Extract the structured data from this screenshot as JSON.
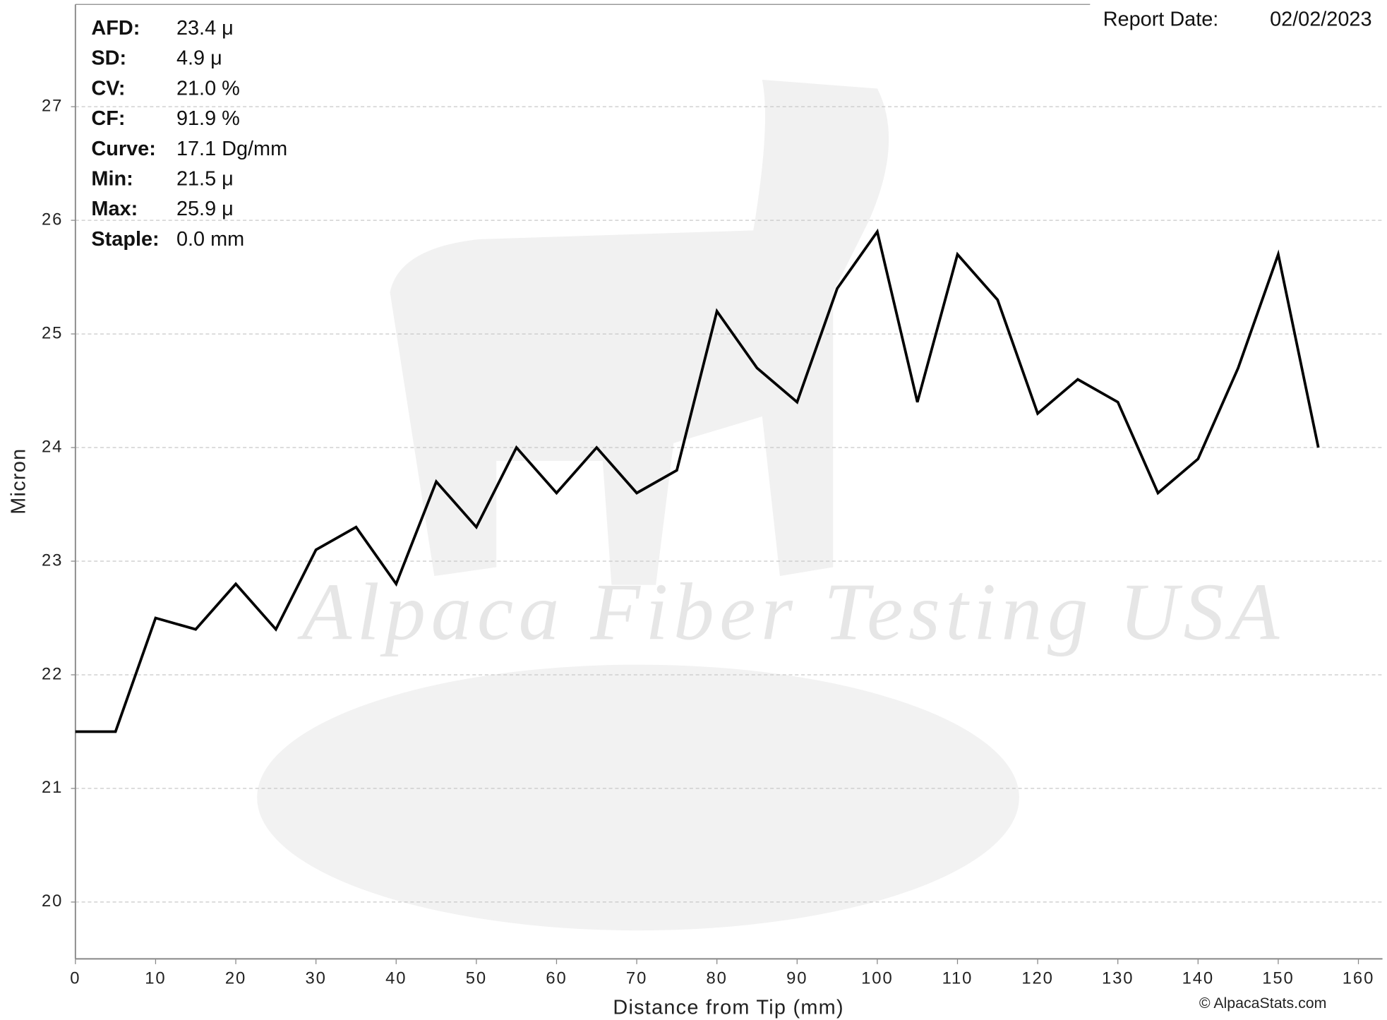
{
  "chart_data": {
    "type": "line",
    "x_label": "Distance from Tip (mm)",
    "y_label": "Micron",
    "report_date_label": "Report Date:",
    "report_date": "02/02/2023",
    "watermark": "Alpaca Fiber Testing USA",
    "credit": "© AlpacaStats.com",
    "stats": [
      {
        "label": "AFD:",
        "value": "23.4 μ"
      },
      {
        "label": "SD:",
        "value": "4.9 μ"
      },
      {
        "label": "CV:",
        "value": "21.0 %"
      },
      {
        "label": "CF:",
        "value": "91.9 %"
      },
      {
        "label": "Curve:",
        "value": "17.1 Dg/mm"
      },
      {
        "label": "Min:",
        "value": "21.5 μ"
      },
      {
        "label": "Max:",
        "value": "25.9 μ"
      },
      {
        "label": "Staple:",
        "value": "0.0 mm"
      }
    ],
    "x": [
      0,
      5,
      10,
      15,
      20,
      25,
      30,
      35,
      40,
      45,
      50,
      55,
      60,
      65,
      70,
      75,
      80,
      85,
      90,
      95,
      100,
      105,
      110,
      115,
      120,
      125,
      130,
      135,
      140,
      145,
      150,
      155
    ],
    "series": [
      {
        "color": "#000000",
        "values": [
          21.5,
          21.5,
          22.5,
          22.4,
          22.8,
          22.4,
          23.1,
          23.3,
          22.8,
          23.7,
          23.3,
          24.0,
          23.6,
          24.0,
          23.6,
          23.8,
          25.2,
          24.7,
          24.4,
          25.4,
          25.9,
          24.4,
          25.7,
          25.3,
          24.3,
          24.6,
          24.4,
          23.6,
          23.9,
          24.7,
          25.7,
          24.0
        ]
      }
    ],
    "xlim": [
      0,
      163
    ],
    "ylim": [
      19.5,
      27.9
    ],
    "xticks": [
      0,
      10,
      20,
      30,
      40,
      50,
      60,
      70,
      80,
      90,
      100,
      110,
      120,
      130,
      140,
      150,
      160
    ],
    "yticks": [
      20,
      21,
      22,
      23,
      24,
      25,
      26,
      27
    ],
    "grid": true
  }
}
